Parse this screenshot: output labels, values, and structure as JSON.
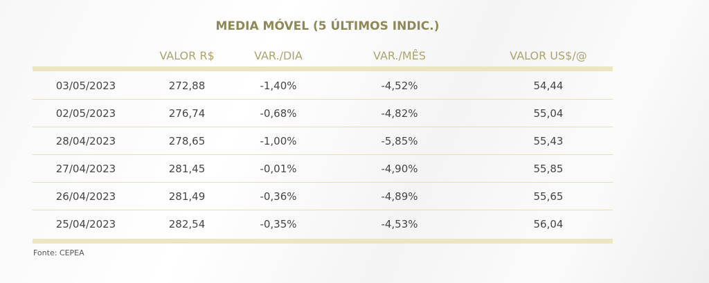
{
  "title": "MEDIA MÓVEL (5 ÚLTIMOS INDIC.)",
  "table": {
    "headers": [
      "VALOR R$",
      "VAR./DIA",
      "VAR./MÊS",
      "VALOR US$/@"
    ],
    "rows": [
      [
        "03/05/2023",
        "272,88",
        "-1,40%",
        "-4,52%",
        "54,44"
      ],
      [
        "02/05/2023",
        "276,74",
        "-0,68%",
        "-4,82%",
        "55,04"
      ],
      [
        "28/04/2023",
        "278,65",
        "-1,00%",
        "-5,85%",
        "55,43"
      ],
      [
        "27/04/2023",
        "281,45",
        "-0,01%",
        "-4,90%",
        "55,85"
      ],
      [
        "26/04/2023",
        "281,49",
        "-0,36%",
        "-4,89%",
        "55,65"
      ],
      [
        "25/04/2023",
        "282,54",
        "-0,35%",
        "-4,53%",
        "56,04"
      ]
    ]
  },
  "source": "Fonte: CEPEA"
}
